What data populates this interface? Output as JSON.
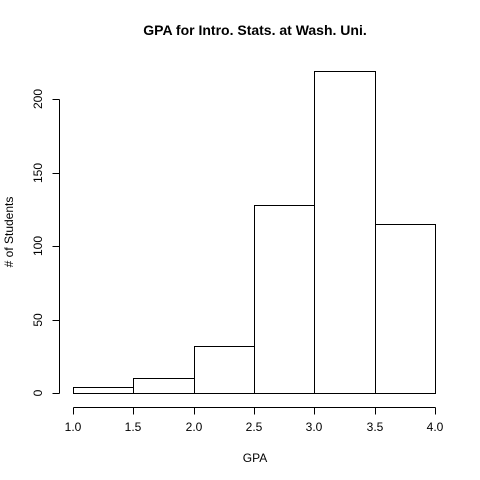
{
  "chart_data": {
    "type": "bar",
    "title": "GPA for Intro. Stats. at Wash. Uni.",
    "xlabel": "GPA",
    "ylabel": "# of Students",
    "bins": [
      {
        "start": 1.0,
        "end": 1.5,
        "value": 4
      },
      {
        "start": 1.5,
        "end": 2.0,
        "value": 10
      },
      {
        "start": 2.0,
        "end": 2.5,
        "value": 32
      },
      {
        "start": 2.5,
        "end": 3.0,
        "value": 128
      },
      {
        "start": 3.0,
        "end": 3.5,
        "value": 219
      },
      {
        "start": 3.5,
        "end": 4.0,
        "value": 115
      }
    ],
    "xlim": [
      1.0,
      4.0
    ],
    "ylim": [
      0,
      200
    ],
    "xticks": [
      "1.0",
      "1.5",
      "2.0",
      "2.5",
      "3.0",
      "3.5",
      "4.0"
    ],
    "yticks": [
      "0",
      "50",
      "100",
      "150",
      "200"
    ],
    "grid": false,
    "colors": {
      "bar_fill": "#ffffff",
      "bar_stroke": "#000000",
      "text": "#000000",
      "background": "#ffffff"
    }
  }
}
